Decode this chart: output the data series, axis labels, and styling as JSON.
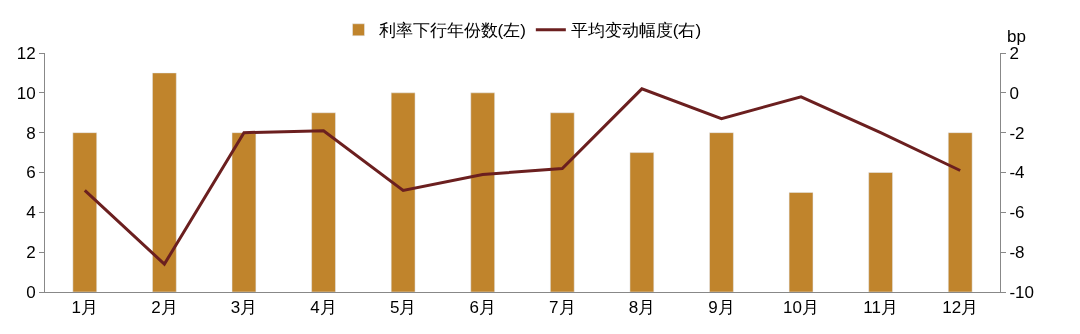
{
  "chart_data": {
    "type": "bar",
    "categories": [
      "1月",
      "2月",
      "3月",
      "4月",
      "5月",
      "6月",
      "7月",
      "8月",
      "9月",
      "10月",
      "11月",
      "12月"
    ],
    "series": [
      {
        "name": "利率下行年份数(左)",
        "color": "#c0842c",
        "values": [
          8,
          11,
          8,
          9,
          10,
          10,
          9,
          7,
          8,
          5,
          6,
          8
        ]
      },
      {
        "name": "平均变动幅度(右)",
        "type": "line",
        "axis": "y2",
        "color": "#6b1f1f",
        "values": [
          -4.9,
          -8.6,
          -2.0,
          -1.9,
          -4.9,
          -4.1,
          -3.8,
          0.2,
          -1.3,
          -0.2,
          -2.0,
          -3.9
        ]
      }
    ],
    "y2label": "bp",
    "ylim": [
      0,
      12
    ],
    "yticks": [
      0,
      2,
      4,
      6,
      8,
      10,
      12
    ],
    "y2lim": [
      -10,
      2
    ],
    "y2ticks": [
      -10,
      -8,
      -6,
      -4,
      -2,
      0,
      2
    ],
    "legend": "top",
    "marker": "none",
    "line_style": "solid"
  }
}
